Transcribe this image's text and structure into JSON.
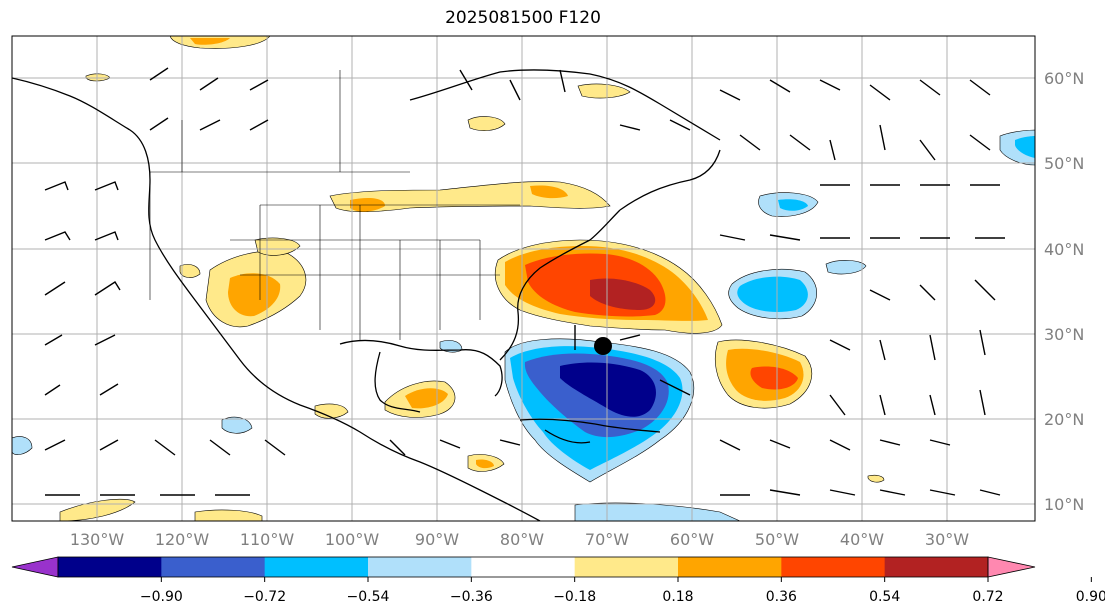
{
  "title": "2025081500 F120",
  "map": {
    "lat_labels": [
      "60°N",
      "50°N",
      "40°N",
      "30°N",
      "20°N",
      "10°N"
    ],
    "lon_labels": [
      "130°W",
      "120°W",
      "110°W",
      "100°W",
      "90°W",
      "80°W",
      "70°W",
      "60°W",
      "50°W",
      "40°W",
      "30°W"
    ]
  },
  "colorbar": {
    "colors": [
      "#9932cc",
      "#00008b",
      "#3a5fcd",
      "#00bfff",
      "#b0e0fa",
      "#ffffff",
      "#ffe98a",
      "#ffa500",
      "#ff4500",
      "#b22222",
      "#ff88b0"
    ],
    "ticks": [
      "−0.90",
      "−0.72",
      "−0.54",
      "−0.36",
      "−0.18",
      "0.18",
      "0.36",
      "0.54",
      "0.72",
      "0.90"
    ]
  },
  "marker": {
    "name": "storm-center-dot"
  }
}
